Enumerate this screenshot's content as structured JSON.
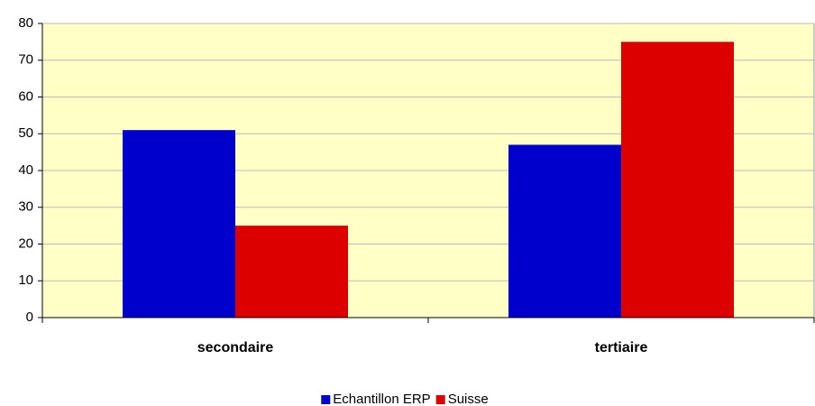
{
  "chart_data": {
    "type": "bar",
    "categories": [
      "secondaire",
      "tertiaire"
    ],
    "series": [
      {
        "name": "Echantillon ERP",
        "color": "#0000cc",
        "values": [
          51,
          47
        ]
      },
      {
        "name": "Suisse",
        "color": "#dd0000",
        "values": [
          25,
          75
        ]
      }
    ],
    "ylim": [
      0,
      80
    ],
    "yticks": [
      0,
      10,
      20,
      30,
      40,
      50,
      60,
      70,
      80
    ],
    "grid": true,
    "legend": "bottom"
  }
}
